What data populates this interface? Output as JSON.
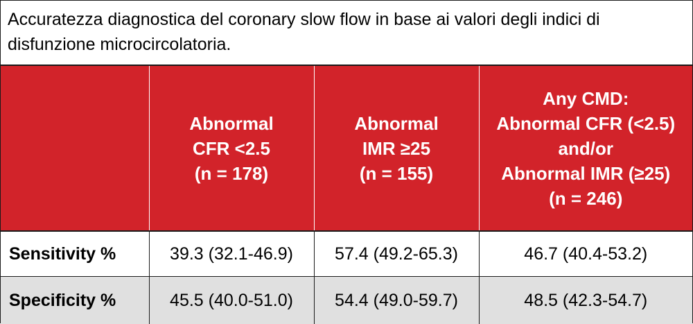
{
  "title": "Accuratezza diagnostica del coronary slow flow in base ai valori degli indici di disfunzione microcircolatoria.",
  "columns": [
    {
      "lines": []
    },
    {
      "lines": [
        "Abnormal",
        "CFR <2.5",
        "(n = 178)"
      ]
    },
    {
      "lines": [
        "Abnormal",
        "IMR ≥25",
        "(n = 155)"
      ]
    },
    {
      "lines": [
        "Any CMD:",
        "Abnormal CFR (<2.5)",
        "and/or",
        "Abnormal IMR (≥25)",
        "(n = 246)"
      ]
    }
  ],
  "rows": [
    {
      "label": "Sensitivity %",
      "values": [
        "39.3 (32.1-46.9)",
        "57.4 (49.2-65.3)",
        "46.7 (40.4-53.2)"
      ]
    },
    {
      "label": "Specificity %",
      "values": [
        "45.5 (40.0-51.0)",
        "54.4 (49.0-59.7)",
        "48.5 (42.3-54.7)"
      ]
    }
  ],
  "colors": {
    "header_bg": "#d2232a",
    "header_text": "#ffffff",
    "alt_row_bg": "#e0e0e0"
  }
}
